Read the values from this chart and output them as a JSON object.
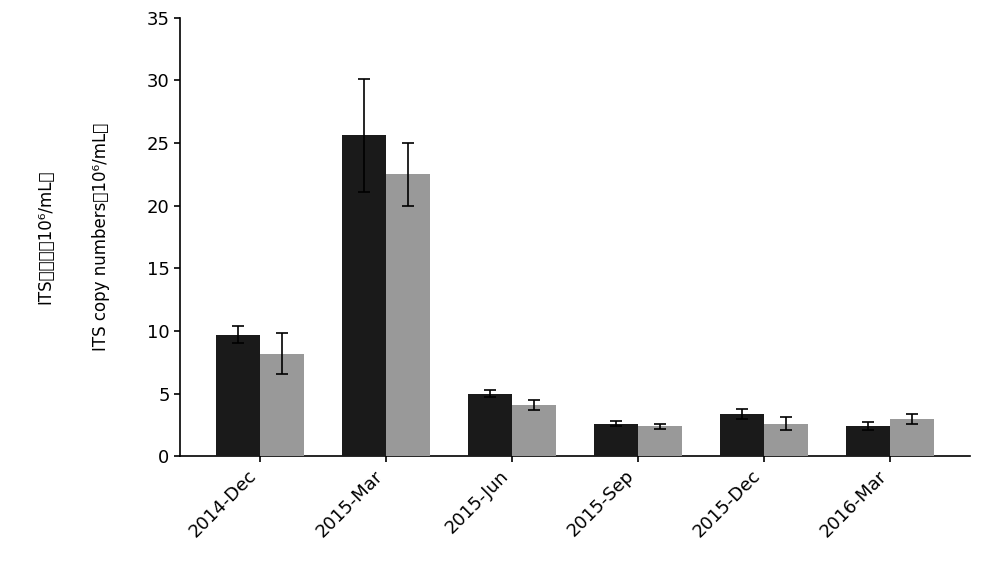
{
  "categories": [
    "2014-Dec",
    "2015-Mar",
    "2015-Jun",
    "2015-Sep",
    "2015-Dec",
    "2016-Mar"
  ],
  "black_values": [
    9.7,
    25.6,
    5.0,
    2.6,
    3.4,
    2.4
  ],
  "gray_values": [
    8.2,
    22.5,
    4.1,
    2.4,
    2.6,
    3.0
  ],
  "black_errors": [
    0.7,
    4.5,
    0.3,
    0.2,
    0.4,
    0.3
  ],
  "gray_errors": [
    1.6,
    2.5,
    0.4,
    0.2,
    0.5,
    0.4
  ],
  "black_color": "#1a1a1a",
  "gray_color": "#999999",
  "ylim": [
    0,
    35
  ],
  "yticks": [
    0,
    5,
    10,
    15,
    20,
    25,
    30,
    35
  ],
  "ylabel_chinese": "ITS拷贝数（10⁶/mL）",
  "ylabel_english": "ITS copy numbers（10⁶/mL）",
  "bar_width": 0.35,
  "figsize": [
    10.0,
    5.85
  ],
  "dpi": 100,
  "background_color": "#ffffff"
}
